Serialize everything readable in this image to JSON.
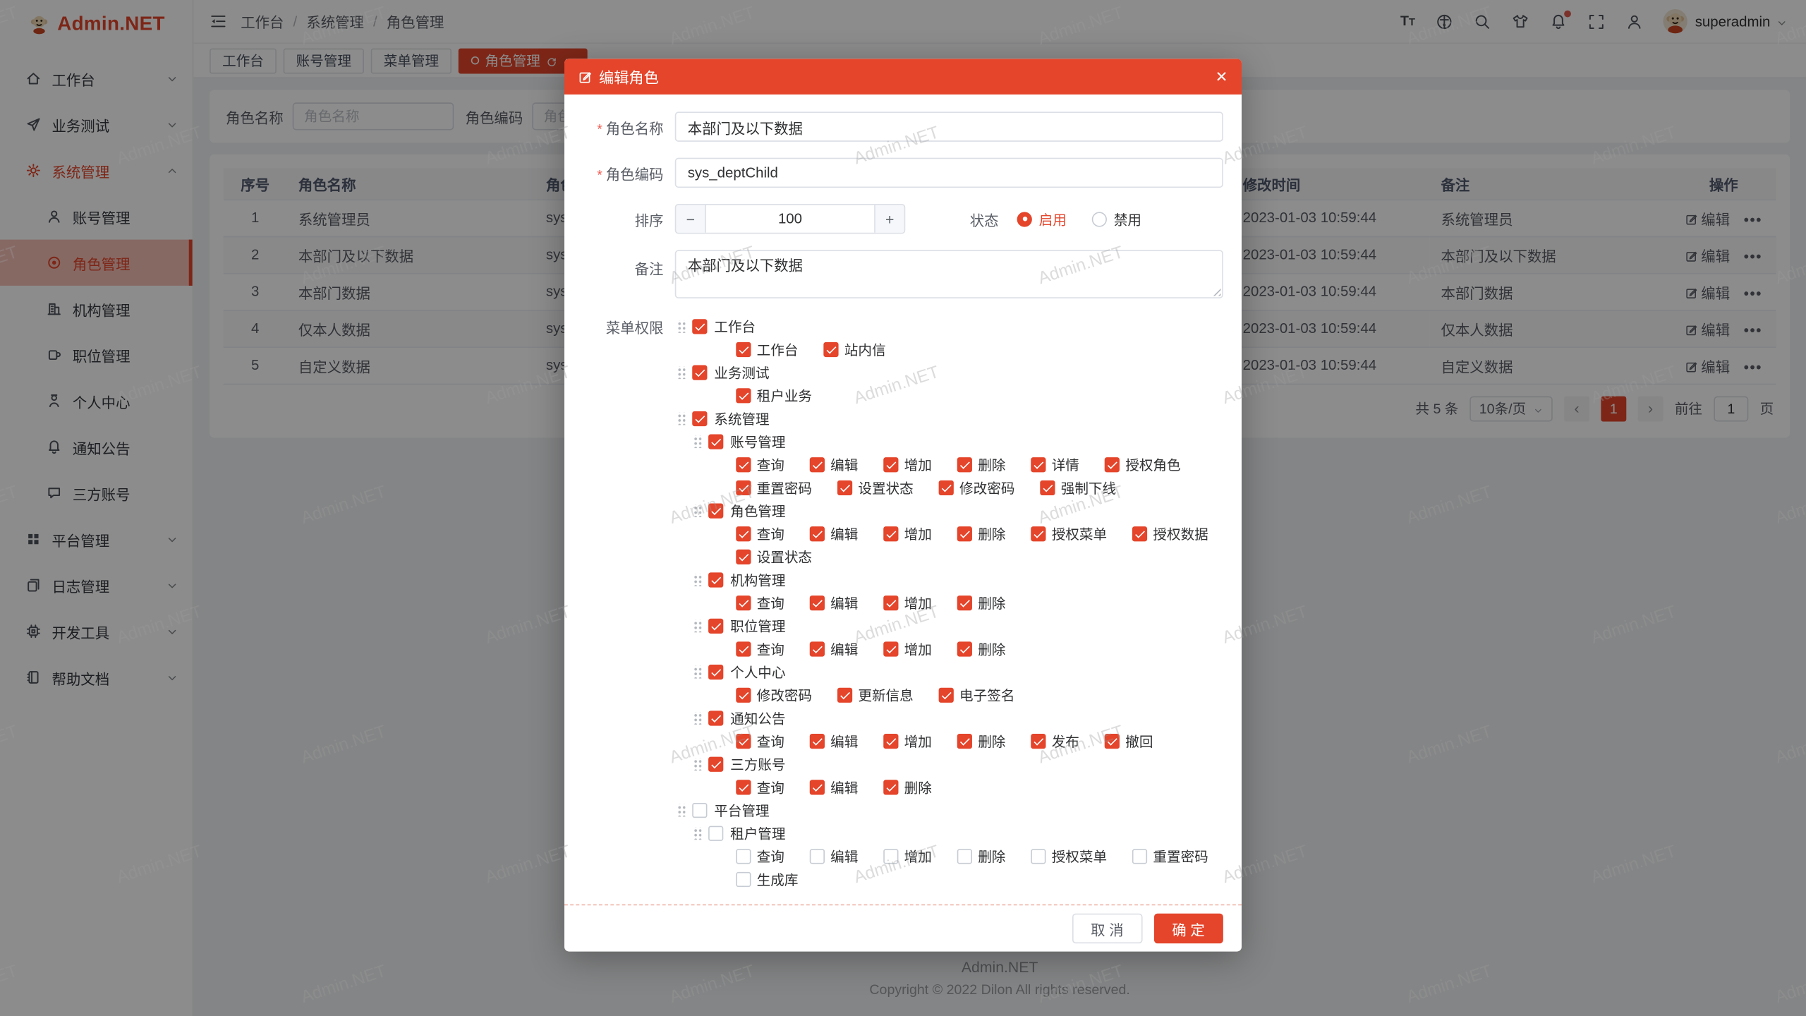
{
  "colors": {
    "primary": "#e4452b"
  },
  "watermark": {
    "text": "Admin.NET"
  },
  "logo": {
    "text": "Admin.NET"
  },
  "sidebar": {
    "items": [
      {
        "id": "workbench",
        "label": "工作台",
        "icon": "home",
        "chevron": "down"
      },
      {
        "id": "biz-test",
        "label": "业务测试",
        "icon": "send",
        "chevron": "down"
      },
      {
        "id": "system",
        "label": "系统管理",
        "icon": "gear",
        "chevron": "up",
        "parentActive": true
      },
      {
        "id": "account",
        "label": "账号管理",
        "icon": "user",
        "sub": true
      },
      {
        "id": "role",
        "label": "角色管理",
        "icon": "role",
        "sub": true,
        "active": true
      },
      {
        "id": "org",
        "label": "机构管理",
        "icon": "building",
        "sub": true
      },
      {
        "id": "position",
        "label": "职位管理",
        "icon": "mug",
        "sub": true
      },
      {
        "id": "profile",
        "label": "个人中心",
        "icon": "person",
        "sub": true
      },
      {
        "id": "notice",
        "label": "通知公告",
        "icon": "bell",
        "sub": true
      },
      {
        "id": "thirdparty",
        "label": "三方账号",
        "icon": "chat",
        "sub": true
      },
      {
        "id": "platform",
        "label": "平台管理",
        "icon": "grid",
        "chevron": "down"
      },
      {
        "id": "log",
        "label": "日志管理",
        "icon": "docs",
        "chevron": "down"
      },
      {
        "id": "devtools",
        "label": "开发工具",
        "icon": "cpu",
        "chevron": "down"
      },
      {
        "id": "help",
        "label": "帮助文档",
        "icon": "book",
        "chevron": "down"
      }
    ]
  },
  "topbar": {
    "breadcrumb": [
      "工作台",
      "系统管理",
      "角色管理"
    ],
    "separator": "/",
    "icons": [
      "font-size",
      "language",
      "search",
      "theme",
      "notification",
      "fullscreen",
      "user"
    ],
    "username": "superadmin"
  },
  "tabs": [
    {
      "label": "工作台"
    },
    {
      "label": "账号管理"
    },
    {
      "label": "菜单管理"
    },
    {
      "label": "角色管理",
      "active": true
    }
  ],
  "search": {
    "name_label": "角色名称",
    "name_placeholder": "角色名称",
    "code_label": "角色编码",
    "code_placeholder": "角色编码"
  },
  "table": {
    "columns": [
      "序号",
      "角色名称",
      "角色编码",
      "修改时间",
      "备注",
      "操作"
    ],
    "rows": [
      {
        "no": "1",
        "name": "系统管理员",
        "code": "sys_admin",
        "time": "2023-01-03 10:59:44",
        "remark": "系统管理员"
      },
      {
        "no": "2",
        "name": "本部门及以下数据",
        "code": "sys_deptChild",
        "time": "2023-01-03 10:59:44",
        "remark": "本部门及以下数据"
      },
      {
        "no": "3",
        "name": "本部门数据",
        "code": "sys_dept",
        "time": "2023-01-03 10:59:44",
        "remark": "本部门数据"
      },
      {
        "no": "4",
        "name": "仅本人数据",
        "code": "sys_self",
        "time": "2023-01-03 10:59:44",
        "remark": "仅本人数据"
      },
      {
        "no": "5",
        "name": "自定义数据",
        "code": "sys_custom",
        "time": "2023-01-03 10:59:44",
        "remark": "自定义数据"
      }
    ],
    "action_edit": "编辑",
    "action_more": "•••"
  },
  "pagination": {
    "total": "共 5 条",
    "page_size": "10条/页",
    "prev": "‹",
    "page": "1",
    "next": "›",
    "goto_label": "前往",
    "goto_value": "1",
    "unit": "页"
  },
  "page_footer": {
    "line1": "Admin.NET",
    "line2": "Copyright © 2022 Dilon All rights reserved."
  },
  "modal": {
    "title": "编辑角色",
    "close": "✕",
    "name_label": "角色名称",
    "name_value": "本部门及以下数据",
    "code_label": "角色编码",
    "code_value": "sys_deptChild",
    "sort_label": "排序",
    "sort_value": "100",
    "sort_minus": "−",
    "sort_plus": "+",
    "status_label": "状态",
    "status_options": [
      {
        "label": "启用",
        "selected": true
      },
      {
        "label": "禁用",
        "selected": false
      }
    ],
    "remark_label": "备注",
    "remark_value": "本部门及以下数据",
    "menu_label": "菜单权限",
    "tree": [
      {
        "label": "工作台",
        "checked": true,
        "perms": [
          "工作台",
          "站内信"
        ]
      },
      {
        "label": "业务测试",
        "checked": true,
        "perms": [
          "租户业务"
        ]
      },
      {
        "label": "系统管理",
        "checked": true,
        "children": [
          {
            "label": "账号管理",
            "checked": true,
            "perms": [
              "查询",
              "编辑",
              "增加",
              "删除",
              "详情",
              "授权角色",
              "重置密码",
              "设置状态",
              "修改密码",
              "强制下线"
            ]
          },
          {
            "label": "角色管理",
            "checked": true,
            "perms": [
              "查询",
              "编辑",
              "增加",
              "删除",
              "授权菜单",
              "授权数据",
              "设置状态"
            ]
          },
          {
            "label": "机构管理",
            "checked": true,
            "perms": [
              "查询",
              "编辑",
              "增加",
              "删除"
            ]
          },
          {
            "label": "职位管理",
            "checked": true,
            "perms": [
              "查询",
              "编辑",
              "增加",
              "删除"
            ]
          },
          {
            "label": "个人中心",
            "checked": true,
            "perms": [
              "修改密码",
              "更新信息",
              "电子签名"
            ]
          },
          {
            "label": "通知公告",
            "checked": true,
            "perms": [
              "查询",
              "编辑",
              "增加",
              "删除",
              "发布",
              "撤回"
            ]
          },
          {
            "label": "三方账号",
            "checked": true,
            "perms": [
              "查询",
              "编辑",
              "删除"
            ]
          }
        ]
      },
      {
        "label": "平台管理",
        "checked": false,
        "children": [
          {
            "label": "租户管理",
            "checked": false,
            "perms": [
              "查询",
              "编辑",
              "增加",
              "删除",
              "授权菜单",
              "重置密码",
              "生成库"
            ]
          }
        ]
      }
    ],
    "cancel": "取 消",
    "ok": "确 定"
  }
}
